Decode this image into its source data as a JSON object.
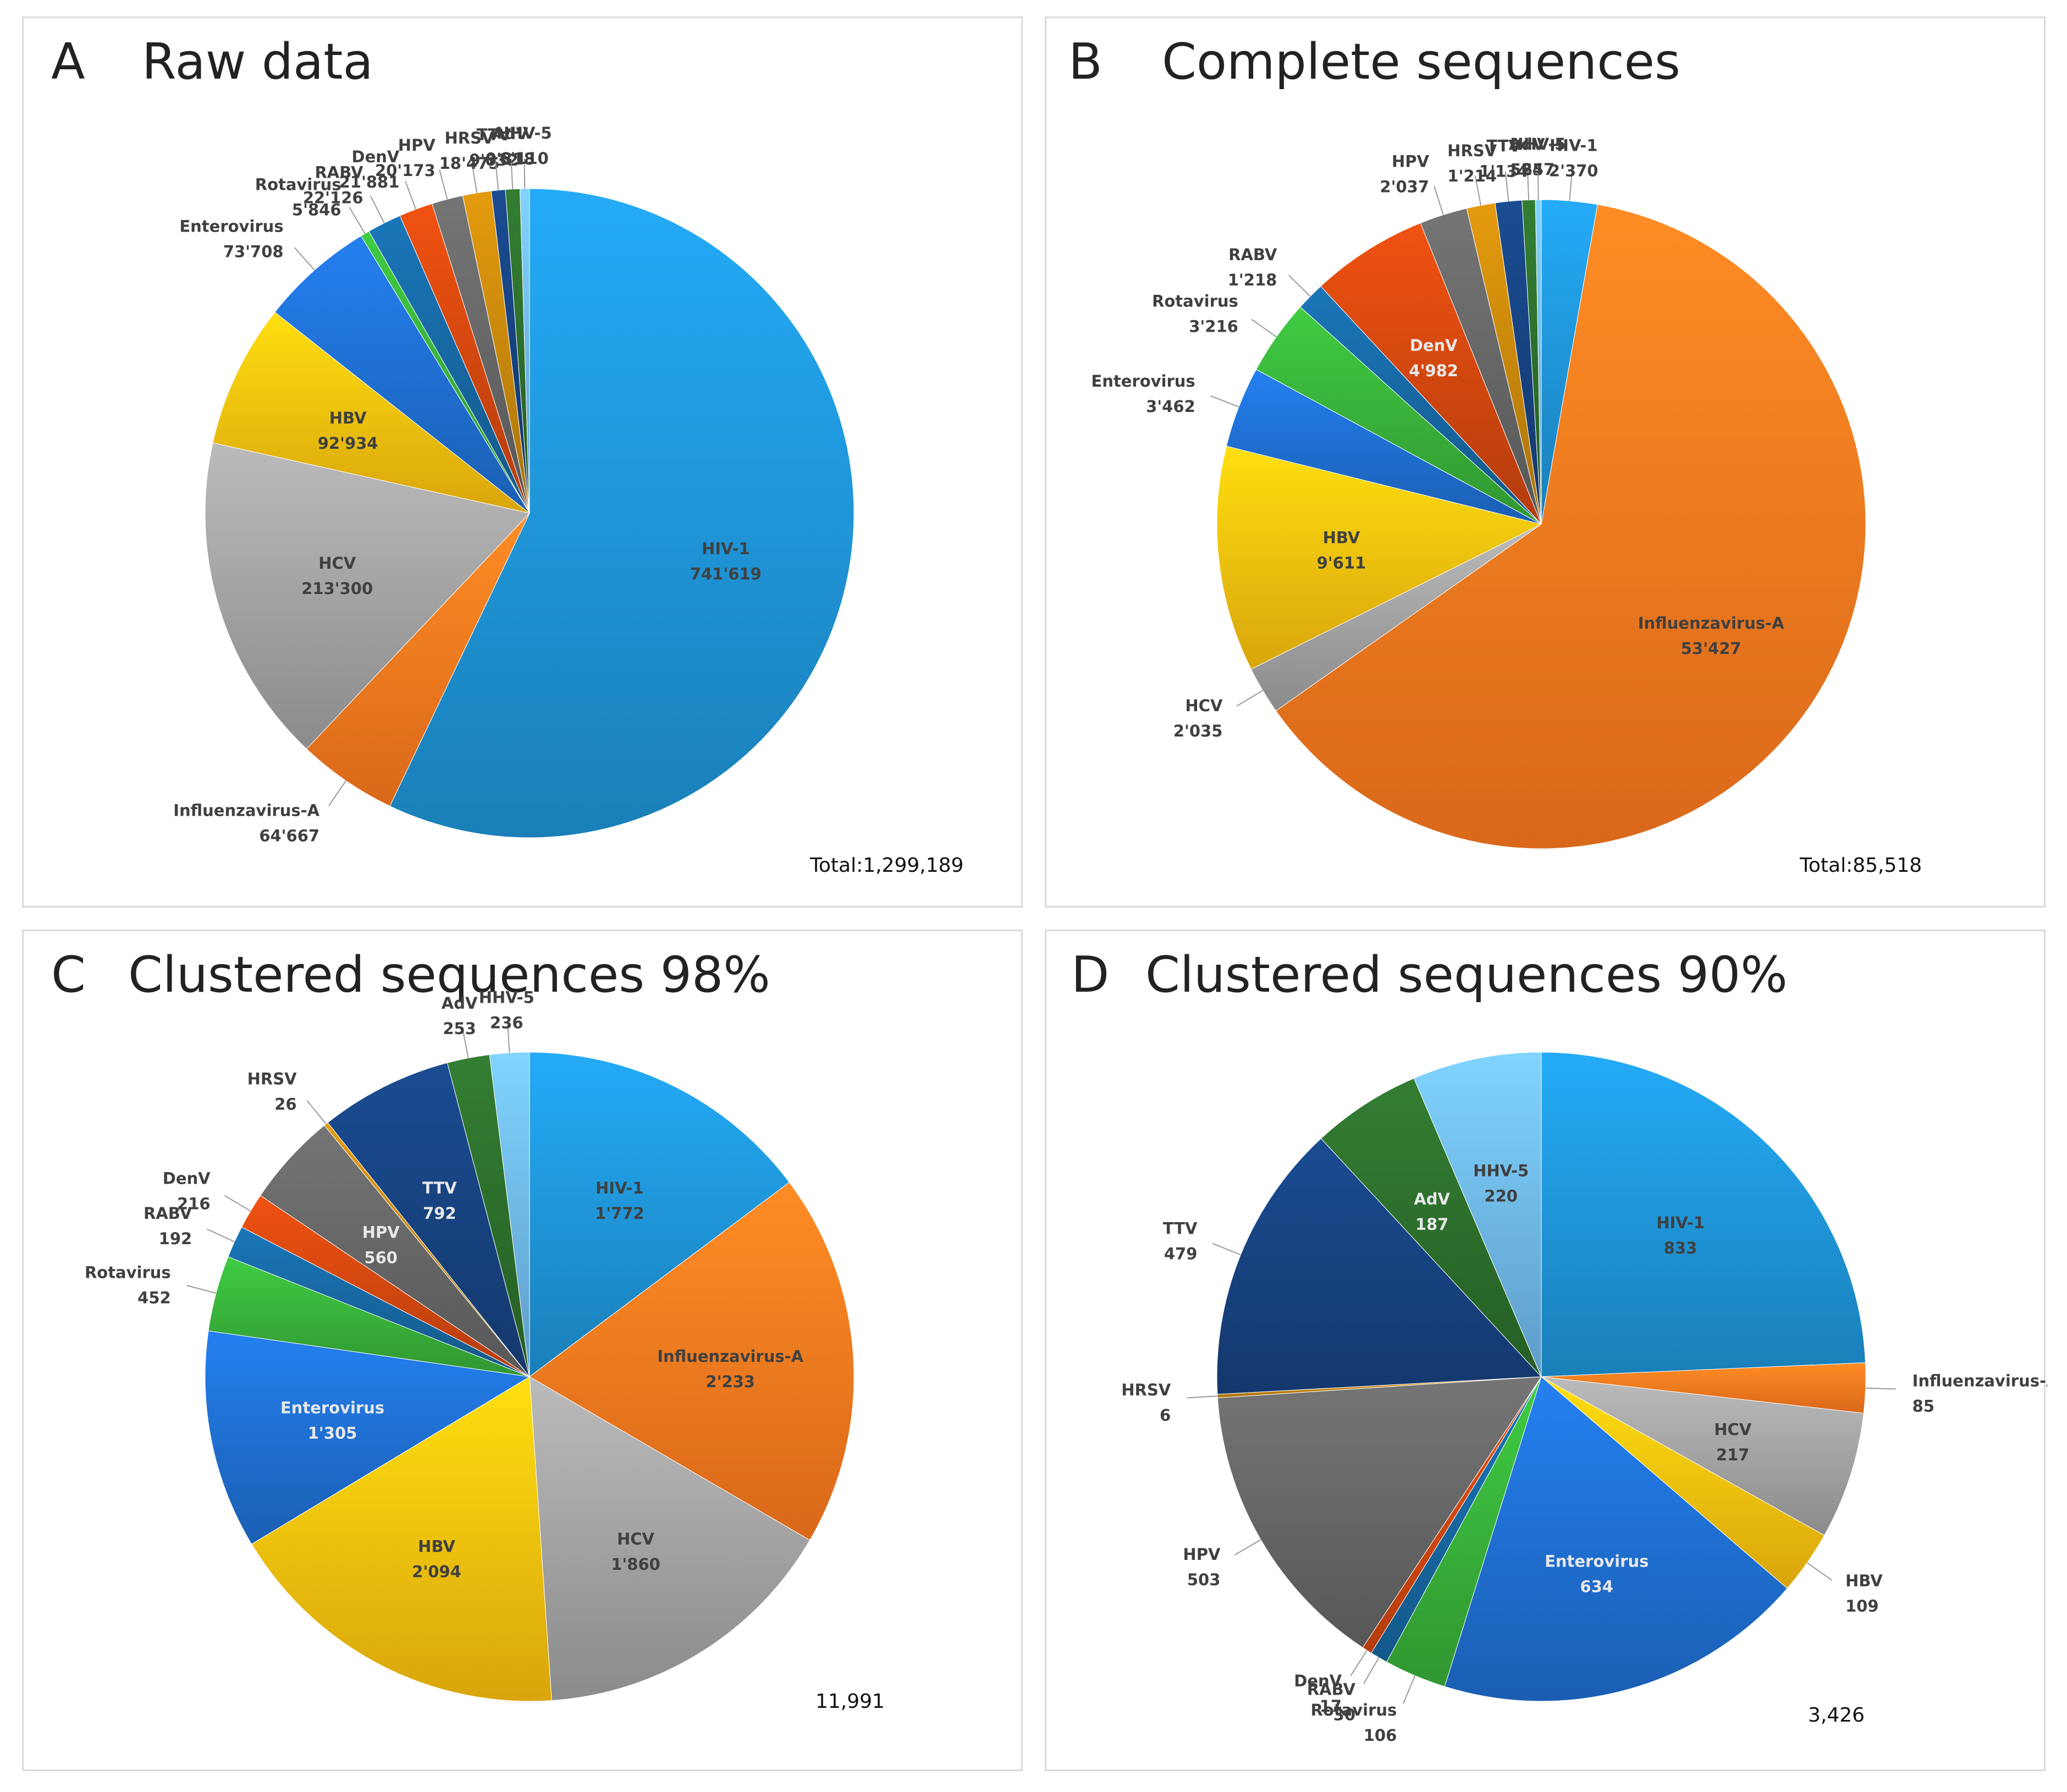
{
  "panels": [
    {
      "letter": "A",
      "title": "Raw data",
      "total": "Total:1,299,189",
      "chart_data": {
        "type": "pie",
        "title": "Raw data",
        "slices": [
          {
            "name": "HIV-1",
            "value": 741619,
            "label": "741'619",
            "color": "#1f95d8",
            "inside": true
          },
          {
            "name": "Influenzavirus-A",
            "value": 64667,
            "label": "64'667",
            "color": "#ff7a1f"
          },
          {
            "name": "HCV",
            "value": 213300,
            "label": "213'300",
            "color": "#a3a3a3",
            "inside": true
          },
          {
            "name": "HBV",
            "value": 92934,
            "label": "92'934",
            "color": "#ffc20e",
            "inside": true
          },
          {
            "name": "Enterovirus",
            "value": 73708,
            "label": "73'708",
            "color": "#1f6fd1"
          },
          {
            "name": "Rotavirus",
            "value": 5846,
            "label": "5'846",
            "color": "#38b13a"
          },
          {
            "name": "RABV",
            "value": 22126,
            "label": "22'126",
            "color": "#1767a1"
          },
          {
            "name": "DenV",
            "value": 21881,
            "label": "21'881",
            "color": "#d2470f"
          },
          {
            "name": "HPV",
            "value": 20173,
            "label": "20'173",
            "color": "#666666"
          },
          {
            "name": "HRSV",
            "value": 18475,
            "label": "18'475",
            "color": "#c7870c"
          },
          {
            "name": "TTV",
            "value": 9032,
            "label": "9'032",
            "color": "#17427f"
          },
          {
            "name": "AdV",
            "value": 9318,
            "label": "9'318",
            "color": "#2c6e2c"
          },
          {
            "name": "HHV-5",
            "value": 6110,
            "label": "6'110",
            "color": "#6fb8ec"
          }
        ]
      }
    },
    {
      "letter": "B",
      "title": "Complete sequences",
      "total": "Total:85,518",
      "chart_data": {
        "type": "pie",
        "title": "Complete sequences",
        "slices": [
          {
            "name": "HIV-1",
            "value": 2370,
            "label": "2'370",
            "color": "#1f95d8"
          },
          {
            "name": "Influenzavirus-A",
            "value": 53427,
            "label": "53'427",
            "color": "#ff7a1f",
            "inside": true
          },
          {
            "name": "HCV",
            "value": 2035,
            "label": "2'035",
            "color": "#a3a3a3"
          },
          {
            "name": "HBV",
            "value": 9611,
            "label": "9'611",
            "color": "#ffc20e",
            "inside": true
          },
          {
            "name": "Enterovirus",
            "value": 3462,
            "label": "3'462",
            "color": "#1f6fd1"
          },
          {
            "name": "Rotavirus",
            "value": 3216,
            "label": "3'216",
            "color": "#38b13a"
          },
          {
            "name": "RABV",
            "value": 1218,
            "label": "1'218",
            "color": "#1767a1"
          },
          {
            "name": "DenV",
            "value": 4982,
            "label": "4'982",
            "color": "#d2470f",
            "inside": true
          },
          {
            "name": "HPV",
            "value": 2037,
            "label": "2'037",
            "color": "#666666"
          },
          {
            "name": "HRSV",
            "value": 1214,
            "label": "1'214",
            "color": "#c7870c"
          },
          {
            "name": "TTV",
            "value": 1134,
            "label": "1'134",
            "color": "#17427f"
          },
          {
            "name": "AdV",
            "value": 565,
            "label": "565",
            "color": "#2c6e2c"
          },
          {
            "name": "HHV-5",
            "value": 247,
            "label": "247",
            "color": "#6fb8ec"
          }
        ]
      }
    },
    {
      "letter": "C",
      "title": "Clustered sequences 98%",
      "total": "11,991",
      "chart_data": {
        "type": "pie",
        "title": "Clustered sequences 98%",
        "slices": [
          {
            "name": "HIV-1",
            "value": 1772,
            "label": "1'772",
            "color": "#1f95d8",
            "inside": true
          },
          {
            "name": "Influenzavirus-A",
            "value": 2233,
            "label": "2'233",
            "color": "#ff7a1f",
            "inside": true
          },
          {
            "name": "HCV",
            "value": 1860,
            "label": "1'860",
            "color": "#a3a3a3",
            "inside": true
          },
          {
            "name": "HBV",
            "value": 2094,
            "label": "2'094",
            "color": "#ffc20e",
            "inside": true
          },
          {
            "name": "Enterovirus",
            "value": 1305,
            "label": "1'305",
            "color": "#1f6fd1",
            "inside": true
          },
          {
            "name": "Rotavirus",
            "value": 452,
            "label": "452",
            "color": "#38b13a"
          },
          {
            "name": "RABV",
            "value": 192,
            "label": "192",
            "color": "#1767a1"
          },
          {
            "name": "DenV",
            "value": 216,
            "label": "216",
            "color": "#d2470f"
          },
          {
            "name": "HPV",
            "value": 560,
            "label": "560",
            "color": "#666666",
            "inside": true
          },
          {
            "name": "HRSV",
            "value": 26,
            "label": "26",
            "color": "#c7870c"
          },
          {
            "name": "TTV",
            "value": 792,
            "label": "792",
            "color": "#17427f",
            "inside": true
          },
          {
            "name": "AdV",
            "value": 253,
            "label": "253",
            "color": "#2c6e2c"
          },
          {
            "name": "HHV-5",
            "value": 236,
            "label": "236",
            "color": "#6fb8ec"
          }
        ]
      }
    },
    {
      "letter": "D",
      "title": "Clustered sequences 90%",
      "total": "3,426",
      "chart_data": {
        "type": "pie",
        "title": "Clustered sequences 90%",
        "slices": [
          {
            "name": "HIV-1",
            "value": 833,
            "label": "833",
            "color": "#1f95d8",
            "inside": true
          },
          {
            "name": "Influenzavirus-A",
            "value": 85,
            "label": "85",
            "color": "#ff7a1f"
          },
          {
            "name": "HCV",
            "value": 217,
            "label": "217",
            "color": "#a3a3a3",
            "inside": true
          },
          {
            "name": "HBV",
            "value": 109,
            "label": "109",
            "color": "#ffc20e"
          },
          {
            "name": "Enterovirus",
            "value": 634,
            "label": "634",
            "color": "#1f6fd1",
            "inside": true
          },
          {
            "name": "Rotavirus",
            "value": 106,
            "label": "106",
            "color": "#38b13a"
          },
          {
            "name": "RABV",
            "value": 30,
            "label": "30",
            "color": "#1767a1"
          },
          {
            "name": "DenV",
            "value": 17,
            "label": "17",
            "color": "#d2470f"
          },
          {
            "name": "HPV",
            "value": 503,
            "label": "503",
            "color": "#666666"
          },
          {
            "name": "HRSV",
            "value": 6,
            "label": "6",
            "color": "#c7870c"
          },
          {
            "name": "TTV",
            "value": 479,
            "label": "479",
            "color": "#17427f"
          },
          {
            "name": "AdV",
            "value": 187,
            "label": "187",
            "color": "#2c6e2c",
            "inside": true
          },
          {
            "name": "HHV-5",
            "value": 220,
            "label": "220",
            "color": "#6fb8ec",
            "inside": true
          }
        ]
      }
    }
  ]
}
